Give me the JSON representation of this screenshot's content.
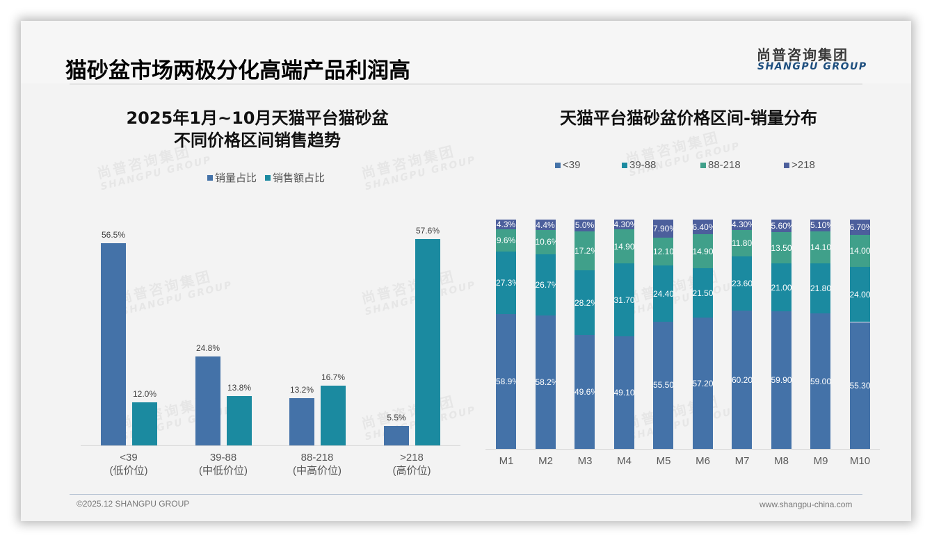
{
  "header": {
    "title": "猫砂盆市场两极分化高端产品利润高",
    "logo_cn": "尚普咨询集团",
    "logo_en": "SHANGPU GROUP"
  },
  "watermark": {
    "cn": "尚普咨询集团",
    "en": "SHANGPU GROUP"
  },
  "footer": {
    "copyright": "©2025.12 SHANGPU GROUP",
    "website": "www.shangpu-china.com"
  },
  "colors": {
    "lt39": "#4472a8",
    "c39_88": "#1b8aa0",
    "c88_218": "#40a08a",
    "gt218": "#4c5f9c",
    "volume": "#4472a8",
    "sales": "#1b8aa0"
  },
  "left_chart": {
    "title_line1": "2025年1月~10月天猫平台猫砂盆",
    "title_line2": "不同价格区间销售趋势",
    "legend": [
      "销量占比",
      "销售额占比"
    ],
    "categories": [
      {
        "range": "<39",
        "tier": "(低价位)"
      },
      {
        "range": "39-88",
        "tier": "(中低价位)"
      },
      {
        "range": "88-218",
        "tier": "(中高价位)"
      },
      {
        "range": ">218",
        "tier": "(高价位)"
      }
    ],
    "volume_labels": [
      "56.5%",
      "24.8%",
      "13.2%",
      "5.5%"
    ],
    "sales_labels": [
      "12.0%",
      "13.8%",
      "16.7%",
      "57.6%"
    ]
  },
  "right_chart": {
    "title": "天猫平台猫砂盆价格区间-销量分布",
    "legend": [
      "<39",
      "39-88",
      "88-218",
      ">218"
    ],
    "months": [
      "M1",
      "M2",
      "M3",
      "M4",
      "M5",
      "M6",
      "M7",
      "M8",
      "M9",
      "M10"
    ],
    "labels": {
      "lt39": [
        "58.9%",
        "58.2%",
        "49.6%",
        "49.10%",
        "55.50%",
        "57.20%",
        "60.20%",
        "59.90%",
        "59.00%",
        "55.30%"
      ],
      "c39_88": [
        "27.3%",
        "26.7%",
        "28.2%",
        "31.70%",
        "24.40%",
        "21.50%",
        "23.60%",
        "21.00%",
        "21.80%",
        "24.00%"
      ],
      "c88_218": [
        "9.6%",
        "10.6%",
        "17.2%",
        "14.90%",
        "12.10%",
        "14.90%",
        "11.80%",
        "13.50%",
        "14.10%",
        "14.00%"
      ],
      "gt218": [
        "4.3%",
        "4.4%",
        "5.0%",
        "4.30%",
        "7.90%",
        "6.40%",
        "4.30%",
        "5.60%",
        "5.10%",
        "6.70%"
      ]
    }
  },
  "chart_data": [
    {
      "type": "bar",
      "title": "2025年1月~10月天猫平台猫砂盆不同价格区间销售趋势",
      "categories": [
        "<39 (低价位)",
        "39-88 (中低价位)",
        "88-218 (中高价位)",
        ">218 (高价位)"
      ],
      "series": [
        {
          "name": "销量占比",
          "values": [
            56.5,
            24.8,
            13.2,
            5.5
          ]
        },
        {
          "name": "销售额占比",
          "values": [
            12.0,
            13.8,
            16.7,
            57.6
          ]
        }
      ],
      "xlabel": "",
      "ylabel": "%",
      "ylim": [
        0,
        60
      ],
      "legend_position": "top",
      "grid": false
    },
    {
      "type": "bar",
      "stacked": true,
      "title": "天猫平台猫砂盆价格区间-销量分布",
      "categories": [
        "M1",
        "M2",
        "M3",
        "M4",
        "M5",
        "M6",
        "M7",
        "M8",
        "M9",
        "M10"
      ],
      "series": [
        {
          "name": "<39",
          "values": [
            58.9,
            58.2,
            49.6,
            49.1,
            55.5,
            57.2,
            60.2,
            59.9,
            59.0,
            55.3
          ]
        },
        {
          "name": "39-88",
          "values": [
            27.3,
            26.7,
            28.2,
            31.7,
            24.4,
            21.5,
            23.6,
            21.0,
            21.8,
            24.0
          ]
        },
        {
          "name": "88-218",
          "values": [
            9.6,
            10.6,
            17.2,
            14.9,
            12.1,
            14.9,
            11.8,
            13.5,
            14.1,
            14.0
          ]
        },
        {
          "name": ">218",
          "values": [
            4.3,
            4.4,
            5.0,
            4.3,
            7.9,
            6.4,
            4.3,
            5.6,
            5.1,
            6.7
          ]
        }
      ],
      "xlabel": "",
      "ylabel": "%",
      "ylim": [
        0,
        100
      ],
      "legend_position": "top",
      "grid": false
    }
  ]
}
